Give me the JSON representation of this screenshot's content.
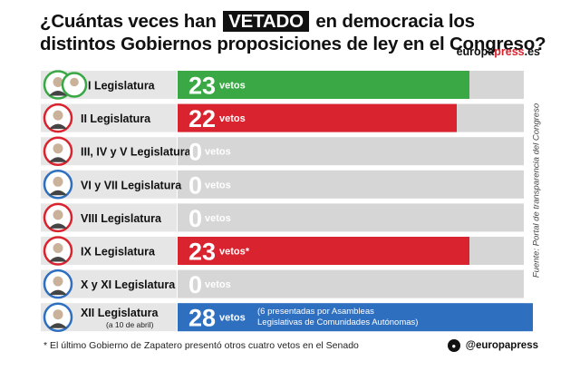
{
  "header": {
    "title_before": "¿Cuántas veces han",
    "title_highlight": "VETADO",
    "title_after": "en democracia los distintos Gobiernos proposiciones de ley en el Congreso?",
    "brand_part1": "europa",
    "brand_part2": "press",
    "brand_part3": ".es"
  },
  "source_note": "Fuente: Portal de transparencia del Congreso",
  "footnote": "* El último Gobierno de Zapatero presentó otros cuatro vetos en el Senado",
  "social": {
    "icon": "twitter-icon",
    "handle": "@europapress"
  },
  "colors": {
    "green": "#3aa845",
    "red": "#d9232e",
    "blue": "#2f6fc0",
    "track": "#d6d6d6",
    "label_bg": "#e6e6e6"
  },
  "chart_data": {
    "type": "bar",
    "categories": [
      "I Legislatura",
      "II Legislatura",
      "III, IV y V Legislatura",
      "VI y VII Legislatura",
      "VIII Legislatura",
      "IX Legislatura",
      "X y XI Legislatura",
      "XII Legislatura"
    ],
    "sublabels": [
      "",
      "",
      "",
      "",
      "",
      "",
      "",
      "(a 10 de abril)"
    ],
    "values": [
      23,
      22,
      0,
      0,
      0,
      23,
      0,
      28
    ],
    "unit": "vetos",
    "markers": [
      "",
      "",
      "",
      "",
      "",
      "*",
      "",
      ""
    ],
    "notes": [
      "",
      "",
      "",
      "",
      "",
      "",
      "",
      "(6 presentadas por Asambleas Legislativas de Comunidades Autónomas)"
    ],
    "party_colors": [
      "green",
      "red",
      "red",
      "blue",
      "red",
      "red",
      "blue",
      "blue"
    ],
    "xlim": [
      0,
      28
    ]
  }
}
